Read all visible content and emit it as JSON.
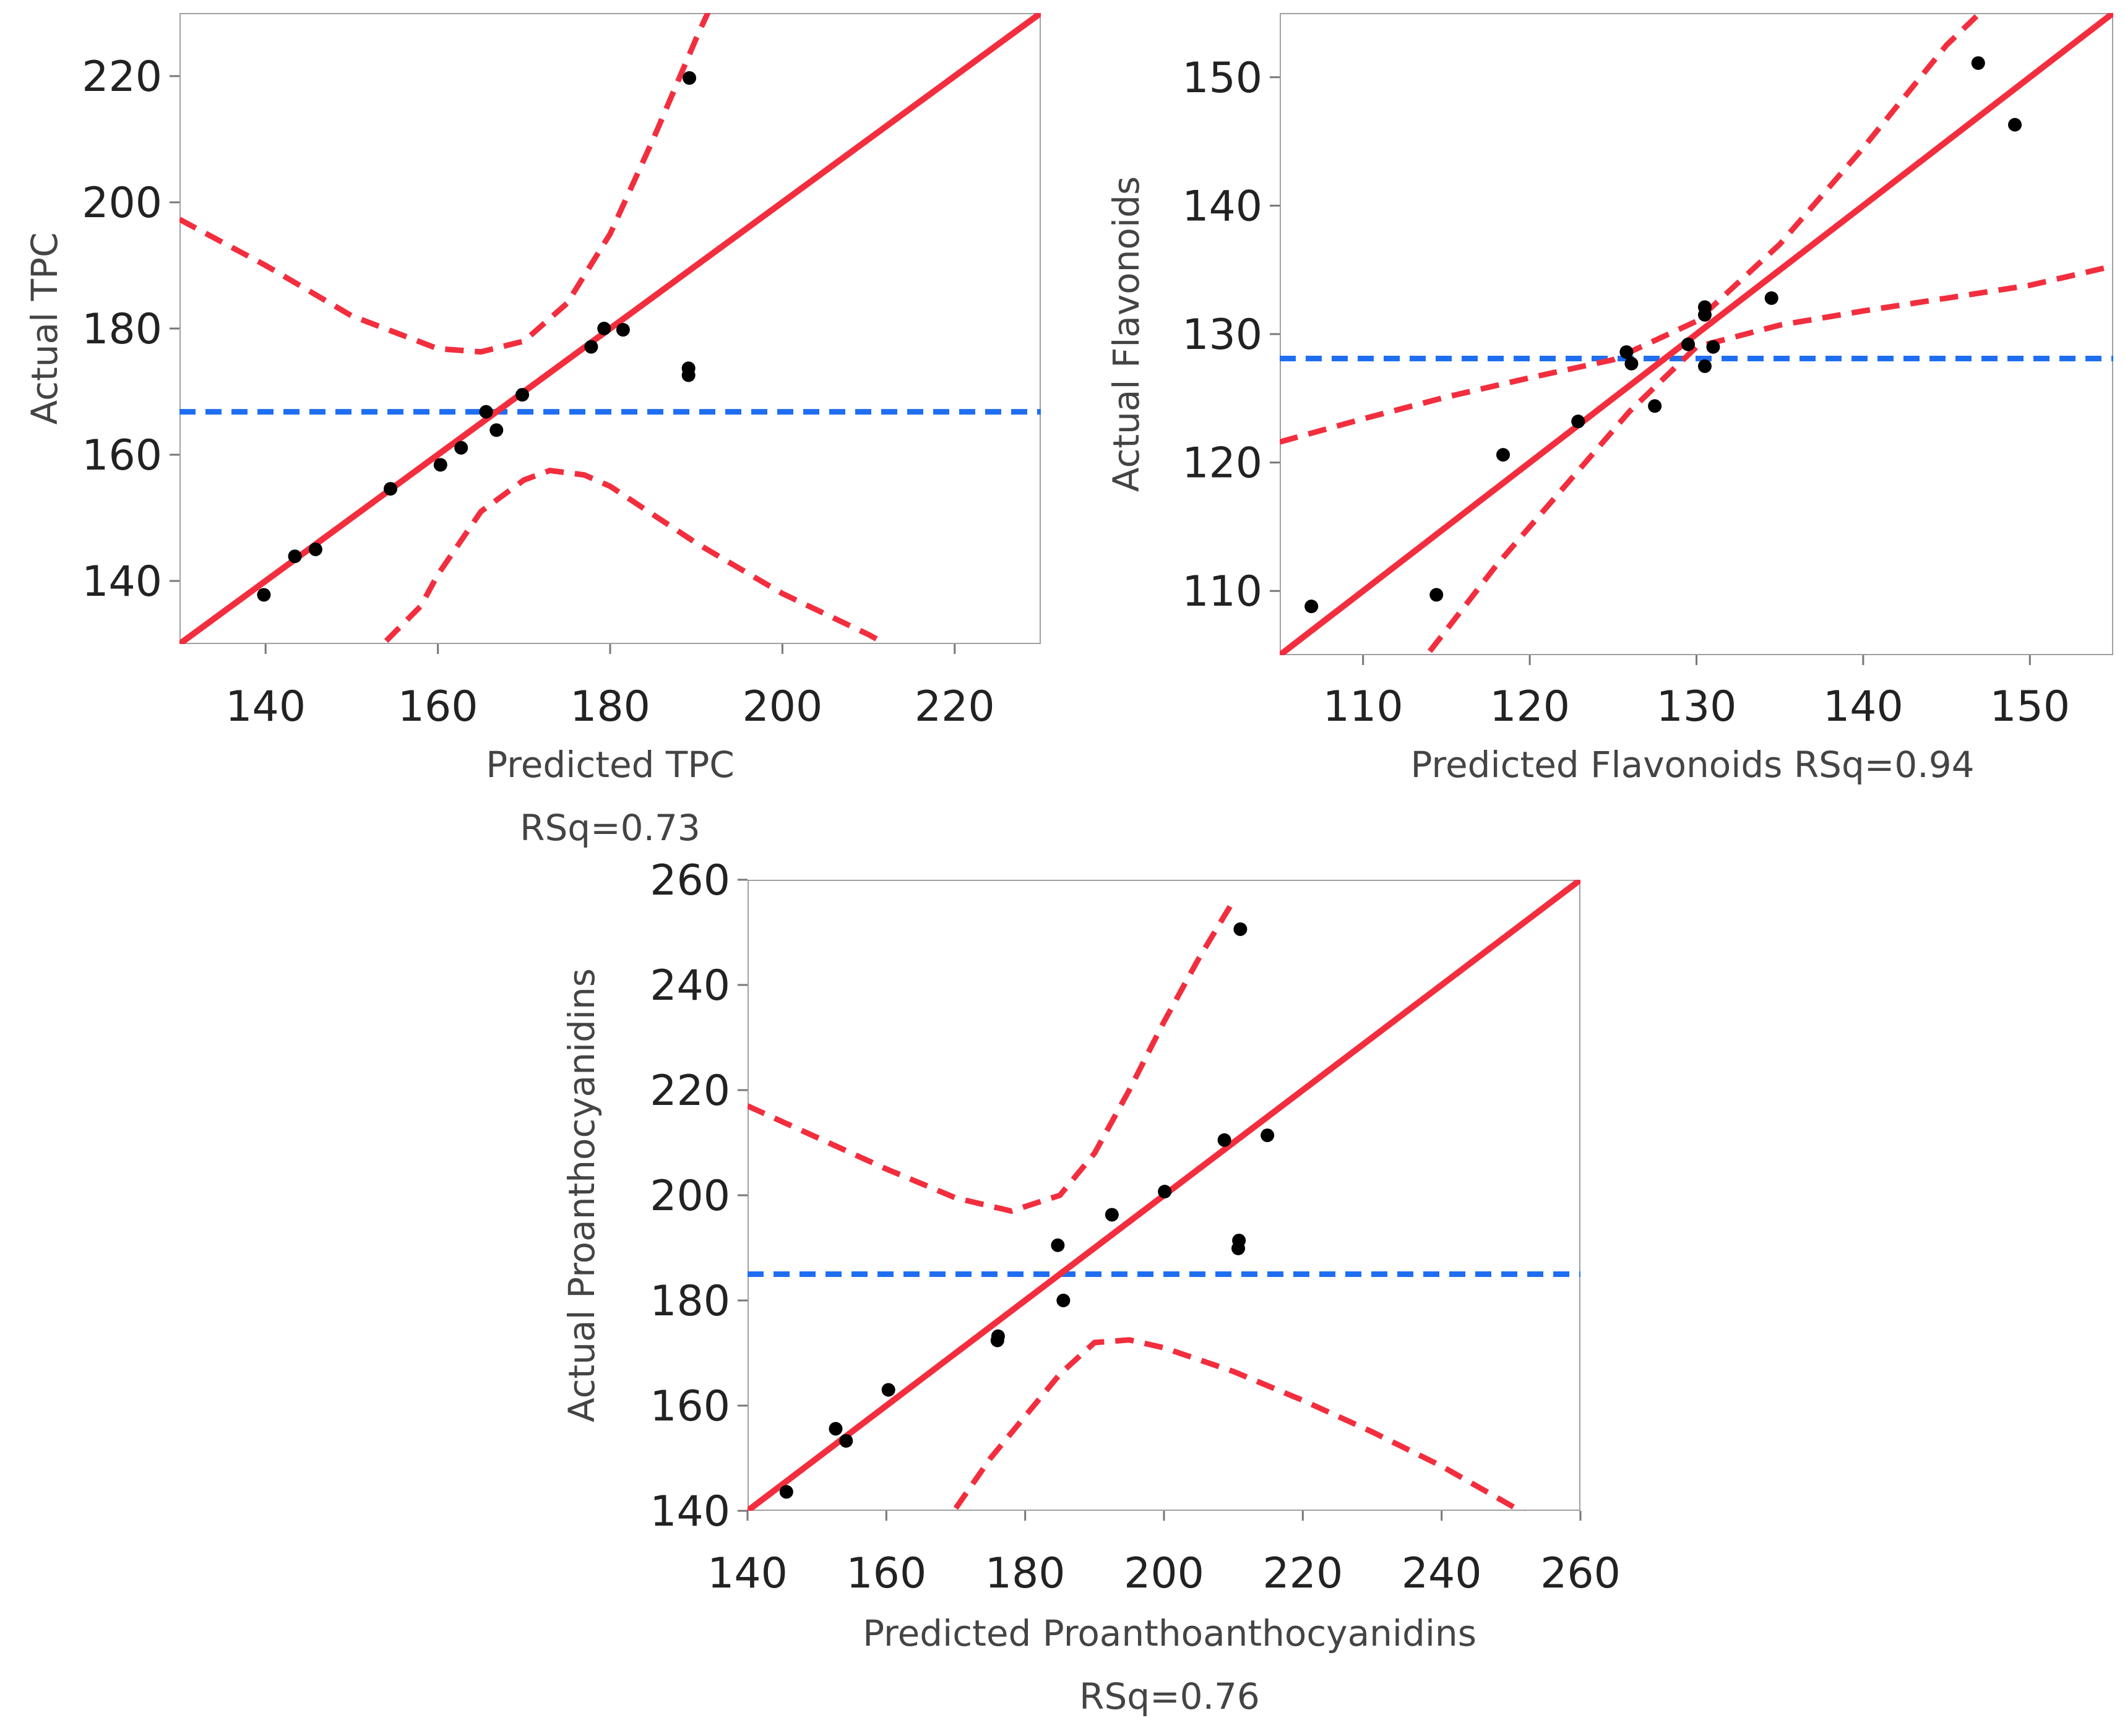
{
  "chart_data": [
    {
      "type": "scatter",
      "id": "tpc",
      "xlabel": "Predicted TPC",
      "rsq_label": "RSq=0.73",
      "ylabel": "Actual TPC",
      "xlim": [
        130,
        230
      ],
      "ylim": [
        130,
        230
      ],
      "xticks": [
        140,
        160,
        180,
        200,
        220
      ],
      "yticks": [
        140,
        160,
        180,
        200,
        220
      ],
      "mean_line": 166.8,
      "fit_line": [
        [
          130,
          130
        ],
        [
          230,
          230
        ]
      ],
      "ci_upper": [
        [
          130,
          197.3
        ],
        [
          140,
          190.0
        ],
        [
          150,
          182.0
        ],
        [
          160,
          176.8
        ],
        [
          165,
          176.3
        ],
        [
          170,
          178.0
        ],
        [
          175,
          184.0
        ],
        [
          180,
          195.0
        ],
        [
          185,
          210.0
        ],
        [
          190,
          226.0
        ],
        [
          192,
          232.0
        ]
      ],
      "ci_lower": [
        [
          154,
          130.5
        ],
        [
          158,
          136.0
        ],
        [
          160,
          141.0
        ],
        [
          165,
          151.0
        ],
        [
          170,
          156.0
        ],
        [
          173,
          157.5
        ],
        [
          177,
          156.8
        ],
        [
          180,
          155.0
        ],
        [
          190,
          146.0
        ],
        [
          200,
          138.0
        ],
        [
          210,
          131.5
        ],
        [
          212,
          130.0
        ]
      ],
      "points": [
        [
          139.8,
          137.8
        ],
        [
          143.4,
          143.9
        ],
        [
          145.8,
          145.0
        ],
        [
          154.5,
          154.6
        ],
        [
          160.3,
          158.4
        ],
        [
          162.7,
          161.1
        ],
        [
          165.6,
          166.8
        ],
        [
          166.8,
          163.9
        ],
        [
          169.8,
          169.5
        ],
        [
          177.8,
          177.1
        ],
        [
          179.3,
          180.0
        ],
        [
          181.5,
          179.8
        ],
        [
          189.1,
          173.7
        ],
        [
          189.1,
          172.6
        ],
        [
          189.2,
          219.7
        ]
      ],
      "colors": {
        "fit": "#f22e3e",
        "ci": "#f22e3e",
        "mean": "#1f6ef2",
        "point": "#000000"
      }
    },
    {
      "type": "scatter",
      "id": "flavonoids",
      "xlabel": "Predicted Flavonoids RSq=0.94",
      "ylabel": "Actual Flavonoids",
      "xlim": [
        105,
        155
      ],
      "ylim": [
        105,
        155
      ],
      "xticks": [
        110,
        120,
        130,
        140,
        150
      ],
      "yticks": [
        110,
        120,
        130,
        140,
        150
      ],
      "mean_line": 128.1,
      "fit_line": [
        [
          105,
          105
        ],
        [
          155,
          155
        ]
      ],
      "ci_upper": [
        [
          105,
          121.6
        ],
        [
          110,
          123.4
        ],
        [
          115,
          125.1
        ],
        [
          120,
          126.6
        ],
        [
          125,
          128.0
        ],
        [
          130,
          131.0
        ],
        [
          135,
          137.0
        ],
        [
          140,
          144.5
        ],
        [
          145,
          152.5
        ],
        [
          147,
          155.0
        ]
      ],
      "ci_lower": [
        [
          114,
          105.3
        ],
        [
          118,
          112.0
        ],
        [
          122,
          118.0
        ],
        [
          126,
          124.0
        ],
        [
          130,
          129.0
        ],
        [
          135,
          130.7
        ],
        [
          140,
          131.8
        ],
        [
          145,
          132.8
        ],
        [
          150,
          133.8
        ],
        [
          155,
          135.3
        ]
      ],
      "points": [
        [
          106.9,
          108.8
        ],
        [
          114.4,
          109.7
        ],
        [
          118.4,
          120.6
        ],
        [
          122.9,
          123.2
        ],
        [
          125.8,
          128.6
        ],
        [
          126.1,
          127.7
        ],
        [
          127.5,
          124.4
        ],
        [
          129.5,
          129.2
        ],
        [
          130.5,
          132.1
        ],
        [
          130.5,
          131.5
        ],
        [
          130.5,
          127.5
        ],
        [
          131.0,
          129.0
        ],
        [
          134.5,
          132.8
        ],
        [
          146.9,
          151.1
        ],
        [
          149.1,
          146.3
        ]
      ],
      "colors": {
        "fit": "#f22e3e",
        "ci": "#f22e3e",
        "mean": "#1f6ef2",
        "point": "#000000"
      }
    },
    {
      "type": "scatter",
      "id": "proanthocyanidins",
      "xlabel": "Predicted Proanthoanthocyanidins",
      "rsq_label": "RSq=0.76",
      "ylabel": "Actual Proanthocyanidins",
      "xlim": [
        140,
        260
      ],
      "ylim": [
        140,
        260
      ],
      "xticks": [
        140,
        160,
        180,
        200,
        220,
        240,
        260
      ],
      "yticks": [
        140,
        160,
        180,
        200,
        220,
        240,
        260
      ],
      "mean_line": 185.0,
      "fit_line": [
        [
          140,
          140
        ],
        [
          260,
          260
        ]
      ],
      "ci_upper": [
        [
          140,
          217.0
        ],
        [
          150,
          211.0
        ],
        [
          160,
          205.0
        ],
        [
          170,
          199.5
        ],
        [
          178,
          197.0
        ],
        [
          185,
          200.0
        ],
        [
          190,
          208.0
        ],
        [
          195,
          220.0
        ],
        [
          200,
          233.0
        ],
        [
          205,
          245.0
        ],
        [
          210,
          256.0
        ]
      ],
      "ci_lower": [
        [
          170,
          140.5
        ],
        [
          175,
          150.0
        ],
        [
          180,
          158.0
        ],
        [
          185,
          166.0
        ],
        [
          190,
          172.0
        ],
        [
          195,
          172.5
        ],
        [
          200,
          171.0
        ],
        [
          210,
          166.5
        ],
        [
          220,
          161.0
        ],
        [
          230,
          155.0
        ],
        [
          240,
          148.5
        ],
        [
          250,
          141.0
        ],
        [
          252,
          139.5
        ]
      ],
      "points": [
        [
          145.6,
          143.6
        ],
        [
          152.7,
          155.6
        ],
        [
          154.2,
          153.3
        ],
        [
          160.3,
          163.0
        ],
        [
          176.0,
          172.4
        ],
        [
          176.1,
          173.2
        ],
        [
          184.7,
          190.5
        ],
        [
          185.5,
          180.0
        ],
        [
          192.5,
          196.3
        ],
        [
          200.1,
          200.7
        ],
        [
          208.7,
          210.5
        ],
        [
          210.7,
          189.9
        ],
        [
          210.8,
          191.4
        ],
        [
          211.0,
          250.6
        ],
        [
          214.9,
          211.4
        ]
      ],
      "colors": {
        "fit": "#f22e3e",
        "ci": "#f22e3e",
        "mean": "#1f6ef2",
        "point": "#000000"
      }
    }
  ]
}
